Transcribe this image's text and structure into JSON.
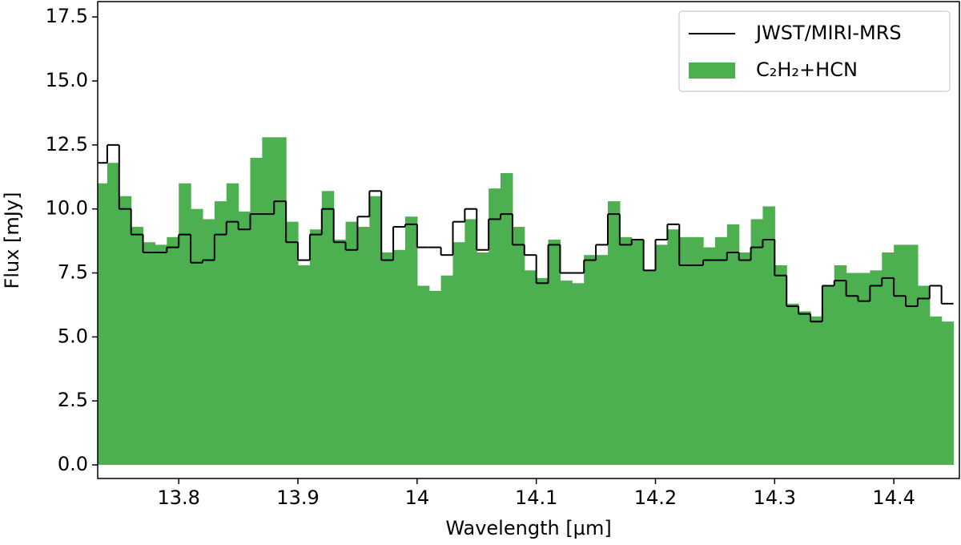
{
  "chart_data": {
    "type": "step-area",
    "xlabel": "Wavelength [μm]",
    "ylabel": "Flux [mJy]",
    "xlim": [
      13.732,
      14.455
    ],
    "ylim": [
      -0.53,
      18.1
    ],
    "xticks": [
      13.8,
      13.9,
      14.0,
      14.1,
      14.2,
      14.3,
      14.4
    ],
    "yticks": [
      {
        "value": 0,
        "label": "0.0"
      },
      2.5,
      {
        "value": 5,
        "label": "5.0"
      },
      7.5,
      {
        "value": 10,
        "label": "10.0"
      },
      12.5,
      {
        "value": 15,
        "label": "15.0"
      },
      17.5
    ],
    "legend": "upper right",
    "x": [
      13.735,
      13.745,
      13.755,
      13.765,
      13.775,
      13.785,
      13.795,
      13.805,
      13.815,
      13.825,
      13.835,
      13.845,
      13.855,
      13.865,
      13.875,
      13.885,
      13.895,
      13.905,
      13.915,
      13.925,
      13.935,
      13.945,
      13.955,
      13.965,
      13.975,
      13.985,
      13.995,
      14.005,
      14.015,
      14.025,
      14.035,
      14.045,
      14.055,
      14.065,
      14.075,
      14.085,
      14.095,
      14.105,
      14.115,
      14.125,
      14.135,
      14.145,
      14.155,
      14.165,
      14.175,
      14.185,
      14.195,
      14.205,
      14.215,
      14.225,
      14.235,
      14.245,
      14.255,
      14.265,
      14.275,
      14.285,
      14.295,
      14.305,
      14.315,
      14.325,
      14.335,
      14.345,
      14.355,
      14.365,
      14.375,
      14.385,
      14.395,
      14.405,
      14.415,
      14.425,
      14.435,
      14.445
    ],
    "series": [
      {
        "name": "JWST/MIRI-MRS",
        "color": "#000000",
        "style": "step-line",
        "values": [
          11.8,
          12.5,
          10.0,
          9.0,
          8.3,
          8.3,
          8.5,
          9.0,
          7.9,
          8.0,
          9.0,
          9.5,
          9.2,
          9.8,
          9.8,
          10.3,
          8.7,
          8.0,
          9.0,
          10.0,
          8.7,
          8.4,
          9.7,
          10.7,
          8.0,
          9.3,
          9.4,
          8.5,
          8.5,
          8.2,
          9.5,
          10.0,
          8.4,
          9.6,
          9.8,
          8.6,
          8.2,
          7.1,
          8.6,
          7.5,
          7.5,
          8.0,
          8.6,
          9.8,
          8.6,
          8.8,
          7.6,
          8.8,
          9.4,
          7.8,
          7.8,
          8.0,
          8.0,
          8.3,
          8.0,
          8.5,
          8.8,
          7.4,
          6.2,
          5.9,
          5.6,
          7.0,
          7.2,
          6.6,
          6.4,
          7.0,
          7.3,
          6.6,
          6.2,
          6.5,
          7.0,
          6.3
        ]
      },
      {
        "name": "C₂H₂+HCN",
        "color": "#4caf50",
        "style": "step-fill",
        "values": [
          11.0,
          11.8,
          10.5,
          9.3,
          8.7,
          8.6,
          8.9,
          11.0,
          10.0,
          9.6,
          10.3,
          11.0,
          9.9,
          12.0,
          12.8,
          12.8,
          9.5,
          7.8,
          9.2,
          10.7,
          8.8,
          9.5,
          9.3,
          10.5,
          8.3,
          8.4,
          9.7,
          7.0,
          6.8,
          7.4,
          8.7,
          9.6,
          8.3,
          10.8,
          11.4,
          9.3,
          7.6,
          7.3,
          8.8,
          7.2,
          7.1,
          8.2,
          8.2,
          10.3,
          8.9,
          8.8,
          7.6,
          8.6,
          9.2,
          8.9,
          8.9,
          8.5,
          8.9,
          9.4,
          8.3,
          9.6,
          10.1,
          7.8,
          6.3,
          6.0,
          5.8,
          7.0,
          7.8,
          7.5,
          7.5,
          7.6,
          8.3,
          8.6,
          8.6,
          7.0,
          5.8,
          5.6
        ]
      }
    ]
  }
}
